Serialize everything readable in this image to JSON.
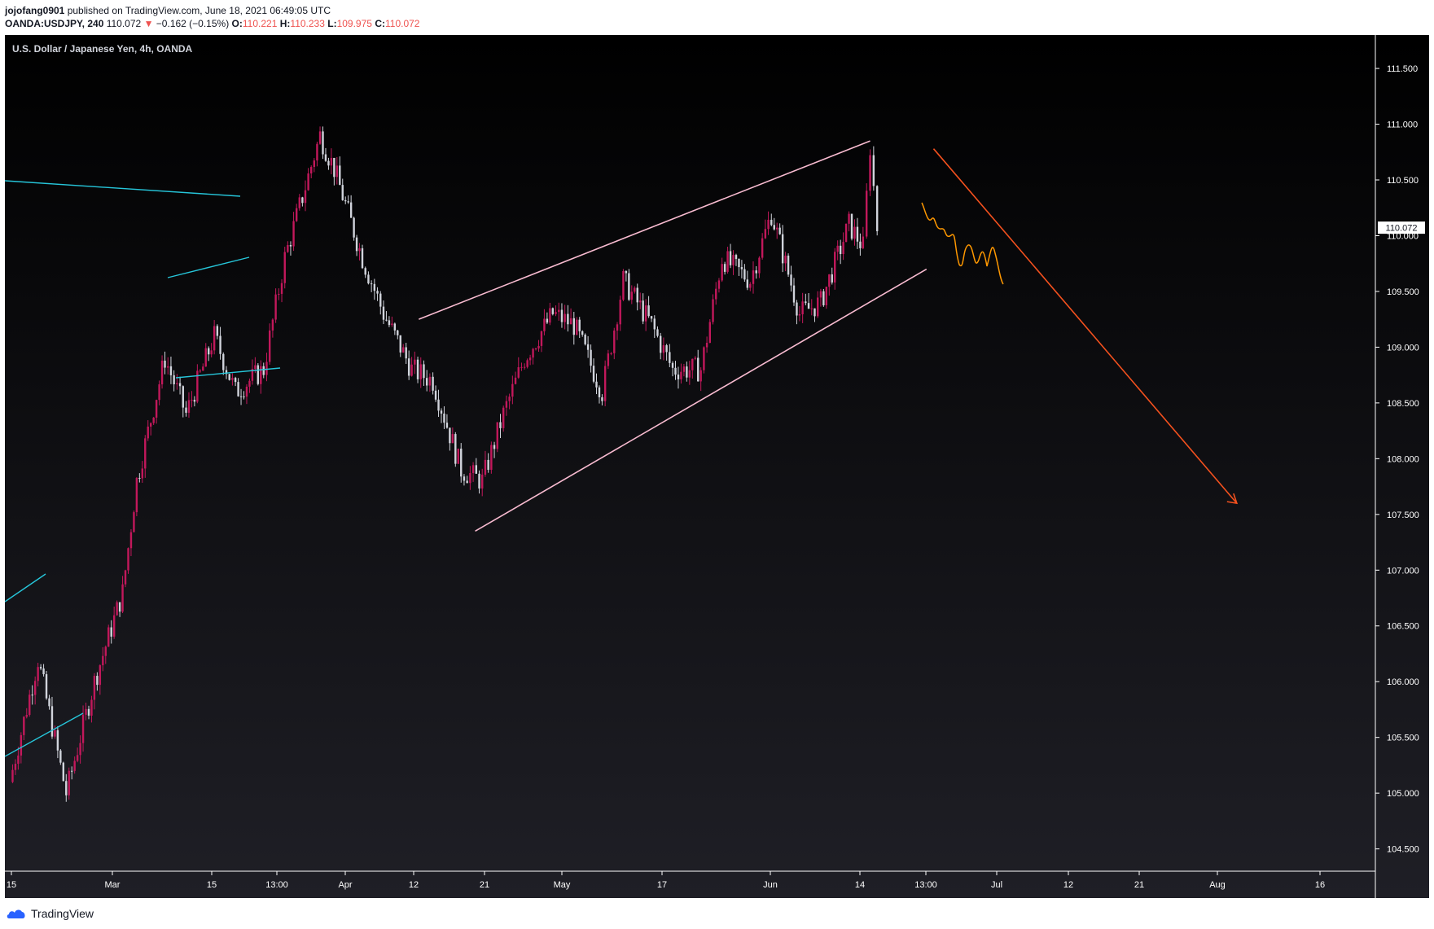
{
  "header": {
    "publisher": "jojofang0901",
    "published_text": "published on TradingView.com, June 18, 2021 06:49:05 UTC",
    "symbol": "OANDA:USDJPY, 240",
    "last": "110.072",
    "change": "−0.162 (−0.15%)",
    "open_label": "O:",
    "open": "110.221",
    "high_label": "H:",
    "high": "110.233",
    "low_label": "L:",
    "low": "109.975",
    "close_label": "C:",
    "close": "110.072"
  },
  "footer": {
    "brand": "TradingView"
  },
  "colors": {
    "background_top": "#000000",
    "background_bottom": "#1f1f26",
    "candle": "#c2185b",
    "candle_alt": "#d1d4dc",
    "channel": "#f8bbd0",
    "trend_blue": "#26c6da",
    "forecast_orange": "#ff9800",
    "arrow_orange": "#f4511e"
  },
  "chart_data": {
    "type": "candlestick",
    "title": "U.S. Dollar / Japanese Yen, 4h, OANDA",
    "ylim": [
      104.3,
      111.8
    ],
    "y_ticks": [
      "111.500",
      "111.000",
      "110.500",
      "110.000",
      "109.500",
      "109.000",
      "108.500",
      "108.000",
      "107.500",
      "107.000",
      "106.500",
      "106.000",
      "105.500",
      "105.000",
      "104.500"
    ],
    "x_ticks": [
      "15",
      "Mar",
      "15",
      "13:00",
      "Apr",
      "12",
      "21",
      "May",
      "17",
      "Jun",
      "14",
      "13:00",
      "Jul",
      "12",
      "21",
      "Aug",
      "16"
    ],
    "last_price_label": "110.072",
    "series": [
      {
        "name": "USDJPY",
        "x": [
          "Feb 15",
          "Feb 19",
          "Feb 23",
          "Feb 27",
          "Mar 3",
          "Mar 5",
          "Mar 9",
          "Mar 12",
          "Mar 16",
          "Mar 19",
          "Mar 23",
          "Mar 26",
          "Mar 31",
          "Apr 2",
          "Apr 6",
          "Apr 9",
          "Apr 13",
          "Apr 16",
          "Apr 20",
          "Apr 23",
          "Apr 26",
          "Apr 29",
          "May 3",
          "May 6",
          "May 10",
          "May 13",
          "May 17",
          "May 20",
          "May 24",
          "May 27",
          "May 31",
          "Jun 3",
          "Jun 7",
          "Jun 10",
          "Jun 14",
          "Jun 16",
          "Jun 17",
          "Jun 18"
        ],
        "y": [
          105.1,
          106.2,
          105.0,
          106.0,
          106.8,
          107.8,
          108.9,
          108.4,
          109.1,
          108.6,
          108.8,
          109.8,
          110.9,
          110.6,
          109.8,
          109.3,
          108.8,
          108.7,
          107.9,
          107.8,
          108.4,
          108.9,
          109.3,
          109.2,
          108.6,
          109.6,
          109.2,
          108.8,
          108.8,
          109.8,
          109.6,
          110.2,
          109.3,
          109.4,
          110.1,
          109.9,
          110.8,
          110.07
        ]
      }
    ],
    "drawings": [
      {
        "type": "channel_upper",
        "from": [
          "Apr 14",
          109.25
        ],
        "to": [
          "Jun 17",
          110.85
        ]
      },
      {
        "type": "channel_lower",
        "from": [
          "Apr 22",
          107.35
        ],
        "to": [
          "Jun 25",
          109.7
        ]
      },
      {
        "type": "forecast_arrow",
        "from": [
          "Jun 26",
          110.78
        ],
        "to": [
          "Aug 8",
          107.6
        ]
      }
    ]
  }
}
